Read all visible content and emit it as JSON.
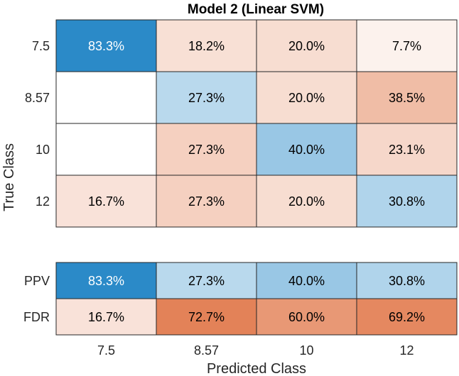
{
  "chart_data": {
    "type": "heatmap",
    "title": "Model 2 (Linear SVM)",
    "xlabel": "Predicted Class",
    "ylabel": "True Class",
    "classes": [
      "7.5",
      "8.57",
      "10",
      "12"
    ],
    "x_tick_labels": [
      "7.5",
      "8.57",
      "10",
      "12"
    ],
    "y_tick_labels": [
      "7.5",
      "8.57",
      "10",
      "12"
    ],
    "matrix": {
      "rows": [
        [
          "83.3%",
          "18.2%",
          "20.0%",
          "7.7%"
        ],
        [
          "",
          "27.3%",
          "20.0%",
          "38.5%"
        ],
        [
          "",
          "27.3%",
          "40.0%",
          "23.1%"
        ],
        [
          "16.7%",
          "27.3%",
          "20.0%",
          "30.8%"
        ]
      ],
      "values": [
        [
          83.3,
          18.2,
          20.0,
          7.7
        ],
        [
          null,
          27.3,
          20.0,
          38.5
        ],
        [
          null,
          27.3,
          40.0,
          23.1
        ],
        [
          16.7,
          27.3,
          20.0,
          30.8
        ]
      ]
    },
    "summary": {
      "row_labels": [
        "PPV",
        "FDR"
      ],
      "rows": [
        [
          "83.3%",
          "27.3%",
          "40.0%",
          "30.8%"
        ],
        [
          "16.7%",
          "72.7%",
          "60.0%",
          "69.2%"
        ]
      ],
      "values": [
        [
          83.3,
          27.3,
          40.0,
          30.8
        ],
        [
          16.7,
          72.7,
          60.0,
          69.2
        ]
      ]
    },
    "colors": {
      "correct": "#0072bd",
      "incorrect": "#d95319",
      "empty": "#ffffff",
      "border": "#262626",
      "dark_text": "#000000",
      "light_text": "#ffffff"
    }
  }
}
